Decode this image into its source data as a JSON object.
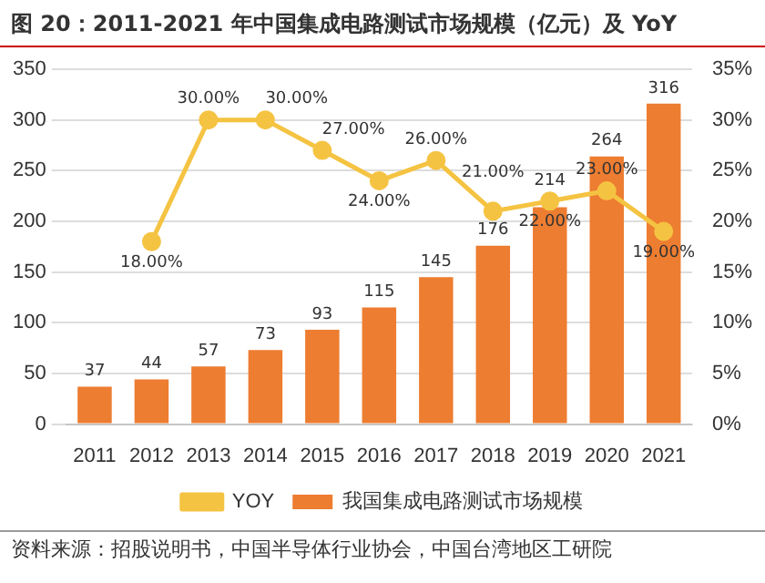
{
  "chart_data": {
    "type": "bar",
    "title": "图 20：2011-2021 年中国集成电路测试市场规模（亿元）及 YoY",
    "categories": [
      "2011",
      "2012",
      "2013",
      "2014",
      "2015",
      "2016",
      "2017",
      "2018",
      "2019",
      "2020",
      "2021"
    ],
    "series": [
      {
        "name": "我国集成电路测试市场规模",
        "color": "#ed7d31",
        "values": [
          37,
          44,
          57,
          73,
          93,
          115,
          145,
          176,
          214,
          264,
          316
        ],
        "value_labels": [
          "37",
          "44",
          "57",
          "73",
          "93",
          "115",
          "145",
          "176",
          "214",
          "264",
          "316"
        ]
      },
      {
        "name": "YOY",
        "type": "line",
        "axis": "y2",
        "color": "#f5c342",
        "marker": "circle",
        "values": [
          null,
          18,
          30,
          30,
          27,
          24,
          26,
          21,
          22,
          23,
          19
        ],
        "value_labels": [
          null,
          "18.00%",
          "30.00%",
          "30.00%",
          "27.00%",
          "24.00%",
          "26.00%",
          "21.00%",
          "22.00%",
          "23.00%",
          "19.00%"
        ]
      }
    ],
    "ylim": [
      0,
      350
    ],
    "yticks": [
      0,
      50,
      100,
      150,
      200,
      250,
      300,
      350
    ],
    "y2lim": [
      0,
      35
    ],
    "y2ticks": [
      {
        "value": 0,
        "label": "0%"
      },
      {
        "value": 5,
        "label": "5%"
      },
      {
        "value": 10,
        "label": "10%"
      },
      {
        "value": 15,
        "label": "15%"
      },
      {
        "value": 20,
        "label": "20%"
      },
      {
        "value": 25,
        "label": "25%"
      },
      {
        "value": 30,
        "label": "30%"
      },
      {
        "value": 35,
        "label": "35%"
      }
    ],
    "grid": "y",
    "legend": "bottom",
    "annotations": [
      "资料来源：招股说明书，中国半导体行业协会，中国台湾地区工研院"
    ]
  }
}
